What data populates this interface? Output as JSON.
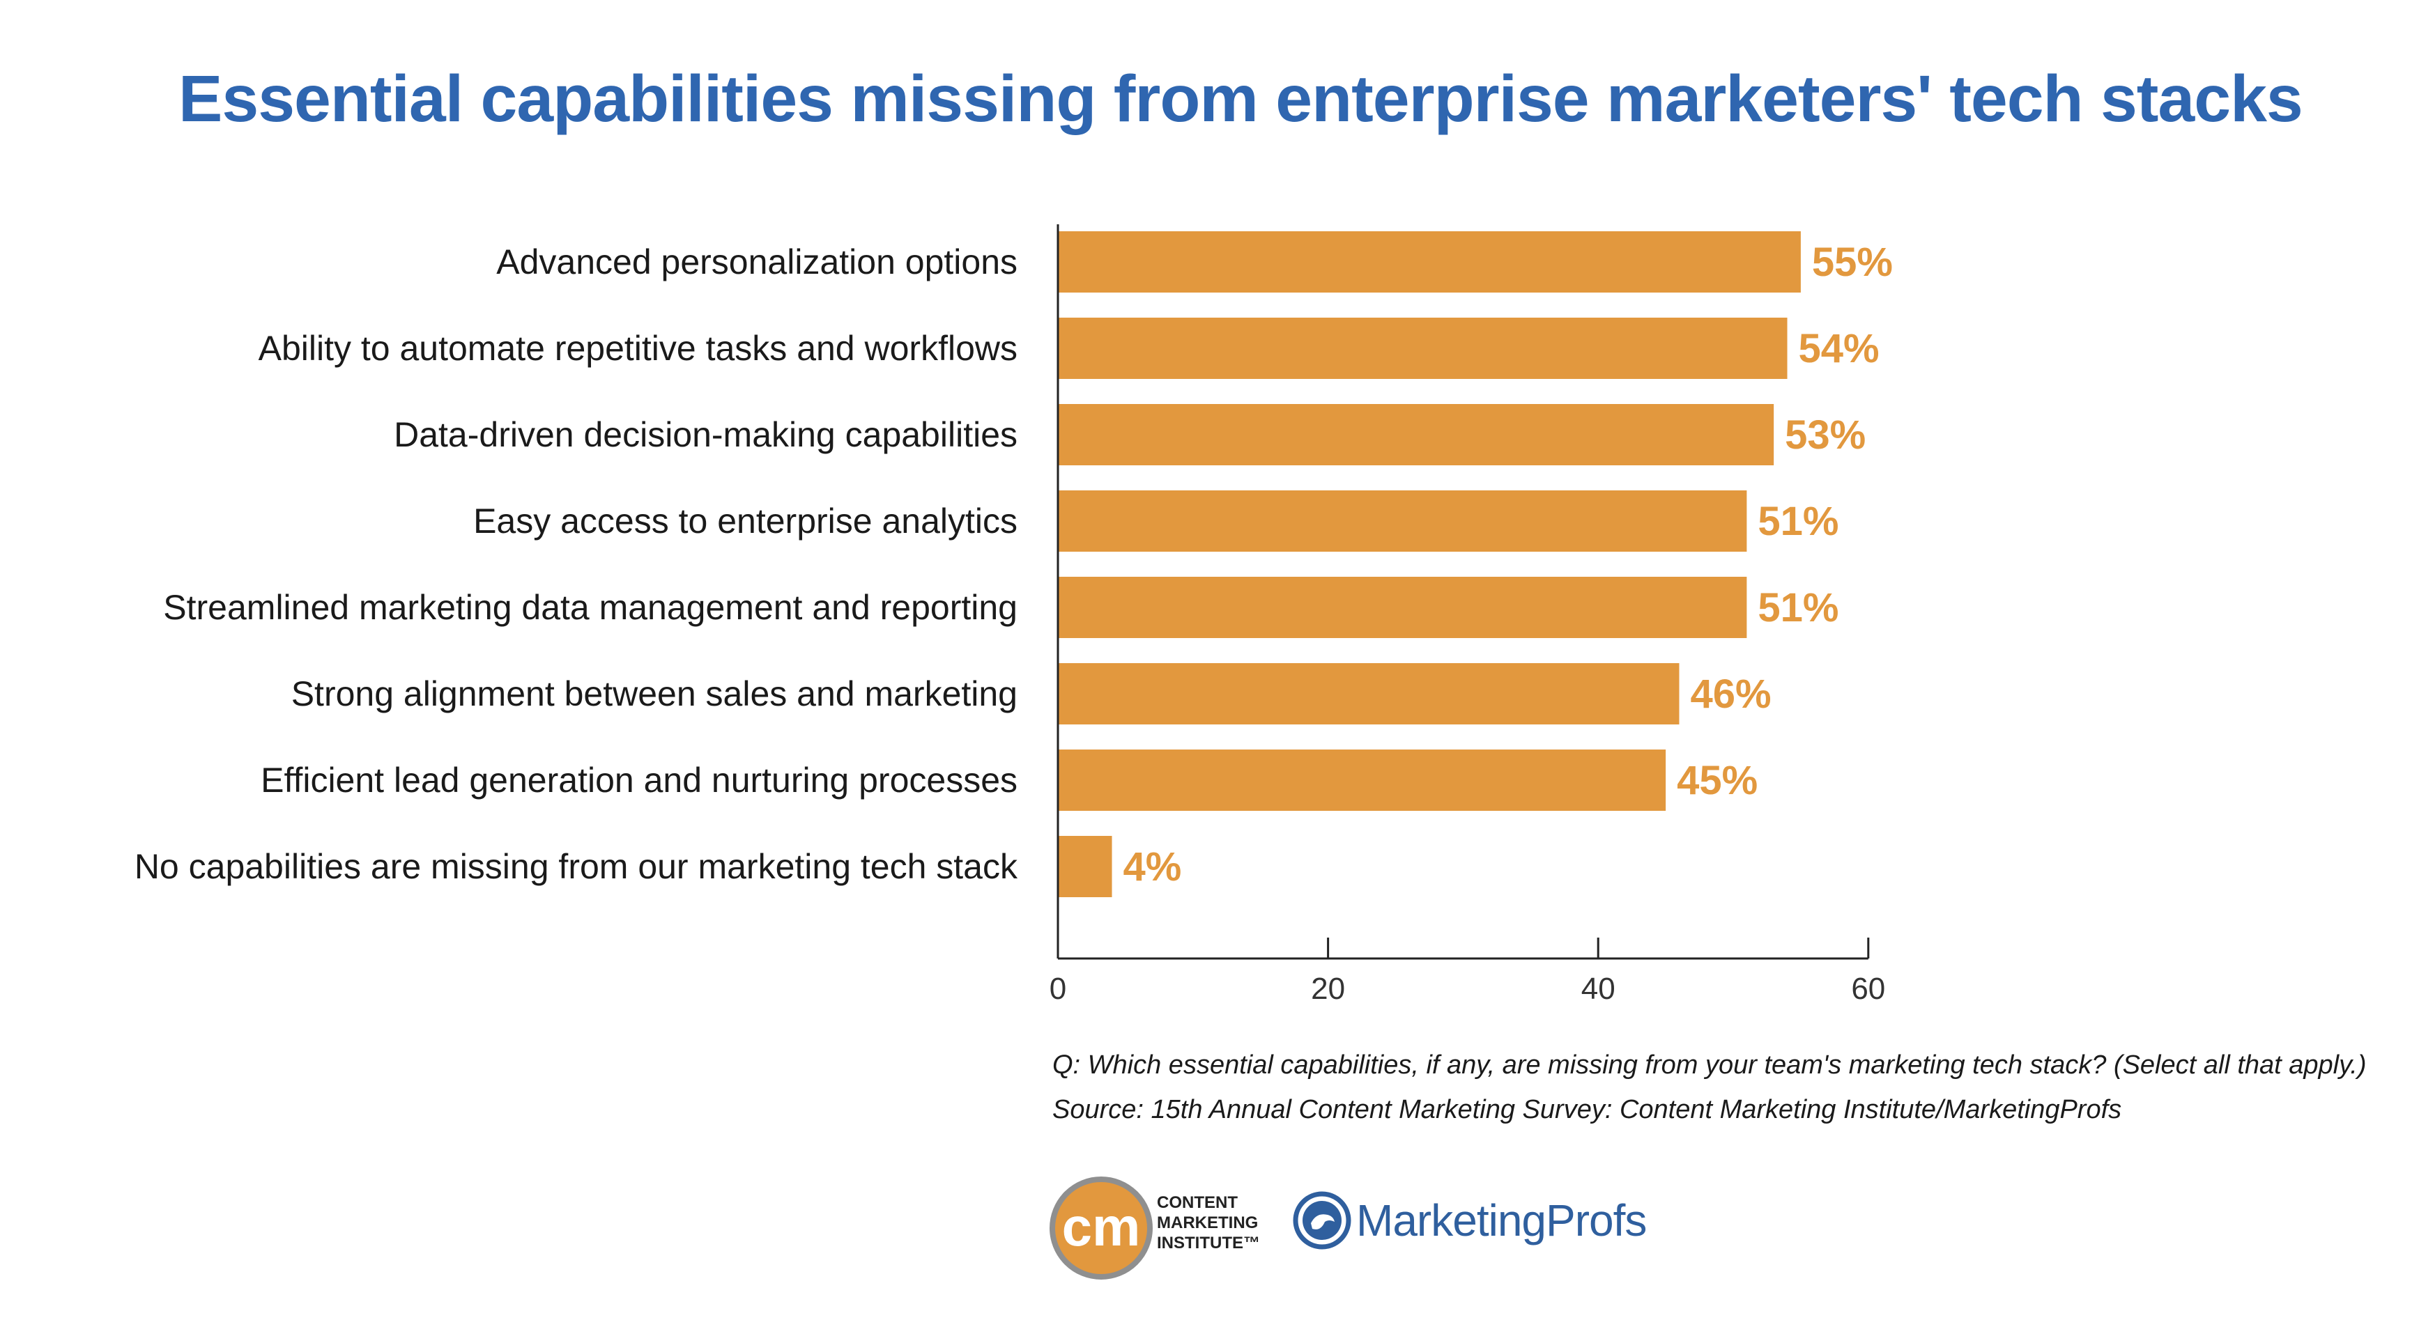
{
  "chart_data": {
    "type": "bar",
    "orientation": "horizontal",
    "title": "Essential capabilities missing from enterprise marketers' tech stacks",
    "categories": [
      "Advanced personalization options",
      "Ability to automate repetitive tasks and workflows",
      "Data-driven decision-making capabilities",
      "Easy access to enterprise analytics",
      "Streamlined marketing data management and reporting",
      "Strong alignment between sales and marketing",
      "Efficient lead generation and nurturing processes",
      "No capabilities are missing from our marketing tech stack"
    ],
    "values": [
      55,
      54,
      53,
      51,
      51,
      46,
      45,
      4
    ],
    "value_labels": [
      "55%",
      "54%",
      "53%",
      "51%",
      "51%",
      "46%",
      "45%",
      "4%"
    ],
    "xlim": [
      0,
      60
    ],
    "xticks": [
      "0",
      "20",
      "40",
      "60"
    ],
    "bar_color": "#e2983e",
    "grid": false,
    "legend": "none"
  },
  "notes": {
    "question": "Q: Which essential capabilities, if any, are missing from your team's marketing tech stack? (Select all that apply.)",
    "source": "Source: 15th Annual Content Marketing Survey: Content Marketing Institute/MarketingProfs"
  },
  "logos": {
    "cmi_monogram": "cm",
    "cmi_text": "CONTENT\nMARKETING\nINSTITUTE™",
    "marketingprofs": "MarketingProfs"
  },
  "colors": {
    "title": "#2f66b0",
    "bar": "#e2983e",
    "cmi_orange": "#e2983e",
    "mp_blue": "#2f5f9e"
  }
}
